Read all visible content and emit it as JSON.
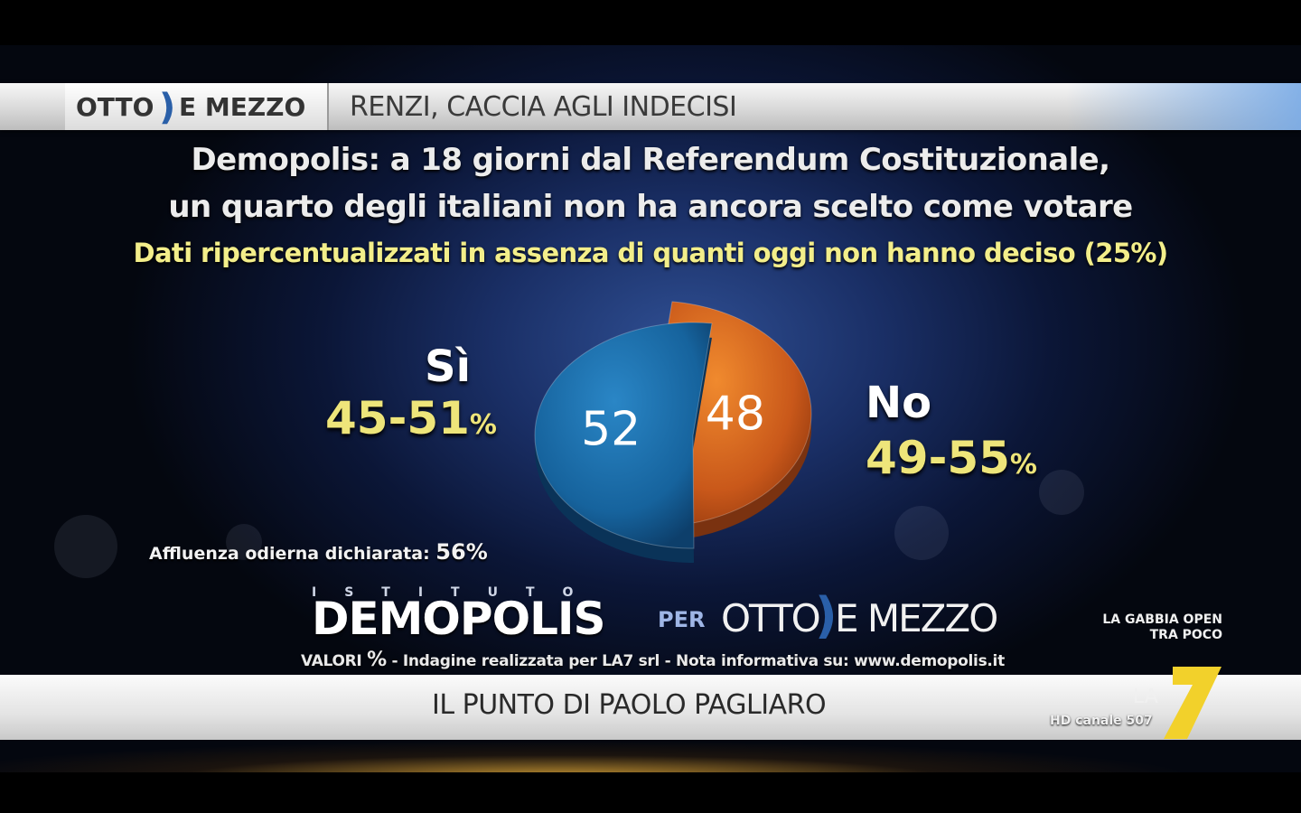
{
  "header": {
    "logo_otto": "OTTO",
    "logo_mezzo": "E MEZZO",
    "topic": "RENZI, CACCIA AGLI INDECISI"
  },
  "title_line1": "Demopolis: a 18 giorni dal Referendum Costituzionale,",
  "title_line2": "un quarto degli italiani non ha ancora scelto come votare",
  "subtitle": "Dati ripercentualizzati in assenza di quanti oggi non hanno deciso (25%)",
  "chart_data": {
    "type": "pie",
    "title": "Demopolis: a 18 giorni dal Referendum Costituzionale, un quarto degli italiani non ha ancora scelto come votare",
    "subtitle": "Dati ripercentualizzati in assenza di quanti oggi non hanno deciso (25%)",
    "categories": [
      "Sì",
      "No"
    ],
    "values": [
      48,
      52
    ],
    "ranges": [
      "45-51%",
      "49-55%"
    ],
    "colors": [
      "#d4691c",
      "#1c6ca8"
    ]
  },
  "turnout_label": "Affluenza odierna dichiarata:",
  "turnout_value": "56%",
  "brand": {
    "istituto": "ISTITUTO",
    "demopolis": "DEMOPOLIS",
    "per": "PER",
    "otto": "OTTO",
    "emezzo": "E MEZZO"
  },
  "source": {
    "valori": "VALORI",
    "pct": "%",
    "text": "- Indagine realizzata per LA7 srl - Nota informativa su: www.demopolis.it"
  },
  "next_program": {
    "line1": "LA GABBIA OPEN",
    "line2": "TRA POCO"
  },
  "lower_third": "IL PUNTO DI PAOLO PAGLIARO",
  "channel": {
    "logo_text": "LA",
    "logo_number": "7",
    "hd": "HD canale 507"
  }
}
